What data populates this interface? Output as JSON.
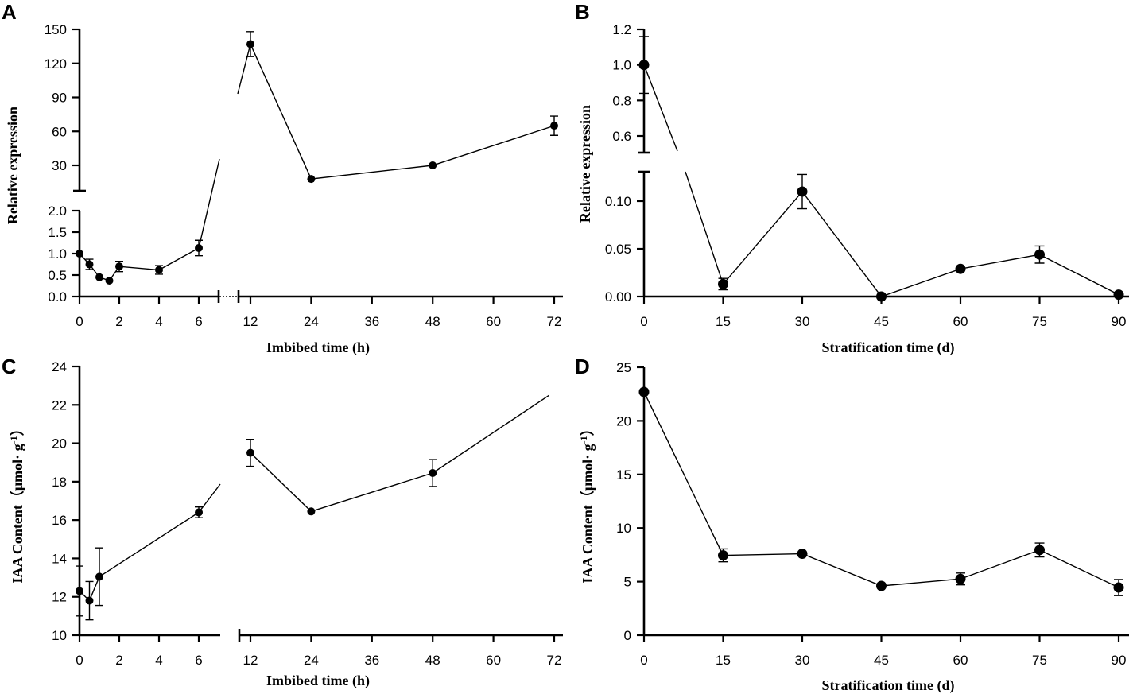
{
  "chart_data": [
    {
      "panel": "A",
      "type": "line",
      "xlabel": "Imbibed time (h)",
      "ylabel": "Relative expression",
      "x_breaks": "axis broken between 6 and 12 (two x segments)",
      "x_segments": [
        {
          "range": [
            0,
            6
          ],
          "ticks": [
            "0",
            "2",
            "4",
            "6"
          ],
          "tick_values": [
            0,
            2,
            4,
            6
          ]
        },
        {
          "range": [
            12,
            72
          ],
          "ticks": [
            "12",
            "24",
            "36",
            "48",
            "60",
            "72"
          ],
          "tick_values": [
            12,
            24,
            36,
            48,
            60,
            72
          ]
        }
      ],
      "y_segments": [
        {
          "range": [
            0,
            2
          ],
          "ticks": [
            "0.0",
            "0.5",
            "1.0",
            "1.5",
            "2.0"
          ],
          "tick_values": [
            0,
            0.5,
            1,
            1.5,
            2
          ]
        },
        {
          "range": [
            10,
            150
          ],
          "ticks": [
            "30",
            "60",
            "90",
            "120",
            "150"
          ],
          "tick_values": [
            30,
            60,
            90,
            120,
            150
          ]
        }
      ],
      "x": [
        0,
        0.5,
        1,
        1.5,
        2,
        4,
        6,
        12,
        24,
        48,
        72
      ],
      "y": [
        1.0,
        0.75,
        0.45,
        0.37,
        0.7,
        0.62,
        1.13,
        137,
        18,
        30,
        65
      ],
      "err": [
        0,
        0.12,
        0,
        0,
        0.12,
        0.1,
        0.18,
        11,
        0,
        0,
        8.5
      ]
    },
    {
      "panel": "B",
      "type": "line",
      "xlabel": "Stratification time (d)",
      "ylabel": "Relative expression",
      "x_ticks": [
        "0",
        "15",
        "30",
        "45",
        "60",
        "75",
        "90"
      ],
      "x_tick_values": [
        0,
        15,
        30,
        45,
        60,
        75,
        90
      ],
      "y_segments": [
        {
          "range": [
            0,
            0.13
          ],
          "ticks": [
            "0.00",
            "0.05",
            "0.10"
          ],
          "tick_values": [
            0,
            0.05,
            0.1
          ]
        },
        {
          "range": [
            0.5,
            1.2
          ],
          "ticks": [
            "0.6",
            "0.8",
            "1.0",
            "1.2"
          ],
          "tick_values": [
            0.6,
            0.8,
            1.0,
            1.2
          ]
        }
      ],
      "x": [
        0,
        15,
        30,
        45,
        60,
        75,
        90
      ],
      "y": [
        1.0,
        0.013,
        0.11,
        0.0,
        0.029,
        0.044,
        0.002
      ],
      "err": [
        0.16,
        0.006,
        0.018,
        0,
        0,
        0.009,
        0
      ]
    },
    {
      "panel": "C",
      "type": "line",
      "xlabel": "Imbibed time (h)",
      "ylabel": "IAA Content（μmol· g",
      "ylabel_sup": "-1",
      "ylabel_end": "）",
      "ylim": [
        10,
        24
      ],
      "y_ticks": [
        "10",
        "12",
        "14",
        "16",
        "18",
        "20",
        "22",
        "24"
      ],
      "y_tick_values": [
        10,
        12,
        14,
        16,
        18,
        20,
        22,
        24
      ],
      "x_segments": [
        {
          "range": [
            0,
            7
          ],
          "ticks": [
            "0",
            "2",
            "4",
            "6"
          ],
          "tick_values": [
            0,
            2,
            4,
            6
          ]
        },
        {
          "range": [
            12,
            72
          ],
          "ticks": [
            "12",
            "24",
            "36",
            "48",
            "60",
            "72"
          ],
          "tick_values": [
            12,
            24,
            36,
            48,
            60,
            72
          ]
        }
      ],
      "x": [
        0,
        0.5,
        1,
        6,
        12,
        24,
        48
      ],
      "y": [
        12.3,
        11.8,
        13.05,
        16.4,
        19.5,
        16.45,
        18.45
      ],
      "err": [
        1.3,
        1.0,
        1.5,
        0.28,
        0.7,
        0,
        0.7
      ],
      "extra_line": {
        "x": [
          48,
          71
        ],
        "y": [
          18.45,
          22.5
        ]
      }
    },
    {
      "panel": "D",
      "type": "line",
      "xlabel": "Stratification time (d)",
      "ylabel": "IAA Content（μmol· g",
      "ylabel_sup": "-1",
      "ylabel_end": "）",
      "ylim": [
        0,
        25
      ],
      "y_ticks": [
        "0",
        "5",
        "10",
        "15",
        "20",
        "25"
      ],
      "y_tick_values": [
        0,
        5,
        10,
        15,
        20,
        25
      ],
      "x_ticks": [
        "0",
        "15",
        "30",
        "45",
        "60",
        "75",
        "90"
      ],
      "x_tick_values": [
        0,
        15,
        30,
        45,
        60,
        75,
        90
      ],
      "x": [
        0,
        15,
        30,
        45,
        60,
        75,
        90
      ],
      "y": [
        22.7,
        7.45,
        7.6,
        4.6,
        5.25,
        7.95,
        4.45
      ],
      "err": [
        0,
        0.6,
        0,
        0,
        0.55,
        0.65,
        0.75
      ]
    }
  ]
}
